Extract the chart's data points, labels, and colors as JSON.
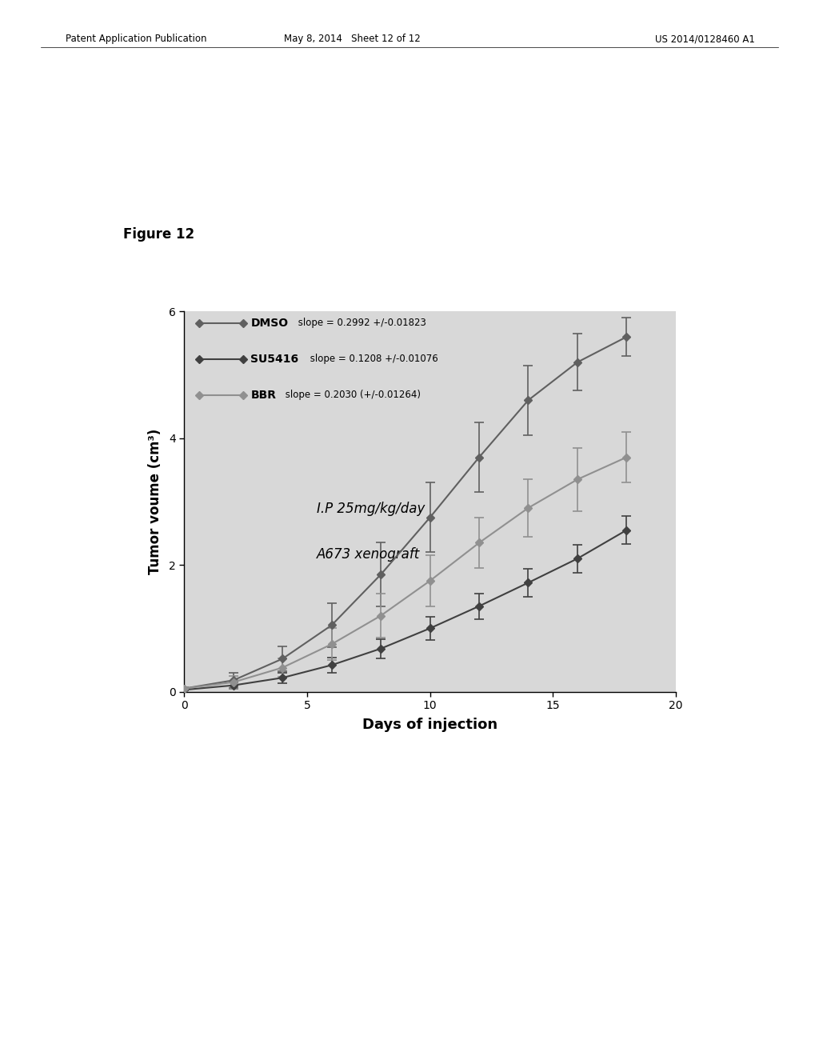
{
  "title": "Figure 12",
  "xlabel": "Days of injection",
  "ylabel": "Tumor voume (cm³)",
  "xlim": [
    0,
    20
  ],
  "ylim": [
    0,
    6
  ],
  "xticks": [
    0,
    5,
    10,
    15,
    20
  ],
  "yticks": [
    0,
    2,
    4,
    6
  ],
  "annotation_line1": "I.P 25mg/kg/day",
  "annotation_line2": "A673 xenograft",
  "header_left": "Patent Application Publication",
  "header_center": "May 8, 2014   Sheet 12 of 12",
  "header_right": "US 2014/0128460 A1",
  "dmso": {
    "label": "DMSO",
    "slope_text": " slope = 0.2992 +/-0.01823",
    "color": "#606060",
    "x": [
      0,
      2,
      4,
      6,
      8,
      10,
      12,
      14,
      16,
      18
    ],
    "y": [
      0.05,
      0.18,
      0.52,
      1.05,
      1.85,
      2.75,
      3.7,
      4.6,
      5.2,
      5.6
    ],
    "yerr": [
      0.02,
      0.12,
      0.2,
      0.35,
      0.5,
      0.55,
      0.55,
      0.55,
      0.45,
      0.3
    ]
  },
  "bbr": {
    "label": "BBR",
    "slope_text": " slope = 0.2030 (+/-0.01264)",
    "color": "#909090",
    "x": [
      0,
      2,
      4,
      6,
      8,
      10,
      12,
      14,
      16,
      18
    ],
    "y": [
      0.05,
      0.15,
      0.38,
      0.75,
      1.2,
      1.75,
      2.35,
      2.9,
      3.35,
      3.7
    ],
    "yerr": [
      0.02,
      0.1,
      0.15,
      0.25,
      0.35,
      0.4,
      0.4,
      0.45,
      0.5,
      0.4
    ]
  },
  "su5416": {
    "label": "SU5416",
    "slope_text": " slope = 0.1208 +/-0.01076",
    "color": "#404040",
    "x": [
      0,
      2,
      4,
      6,
      8,
      10,
      12,
      14,
      16,
      18
    ],
    "y": [
      0.03,
      0.1,
      0.22,
      0.42,
      0.68,
      1.0,
      1.35,
      1.72,
      2.1,
      2.55
    ],
    "yerr": [
      0.01,
      0.05,
      0.08,
      0.12,
      0.15,
      0.18,
      0.2,
      0.22,
      0.22,
      0.22
    ]
  },
  "background_color": "#ffffff",
  "plot_bg_color": "#d8d8d8"
}
